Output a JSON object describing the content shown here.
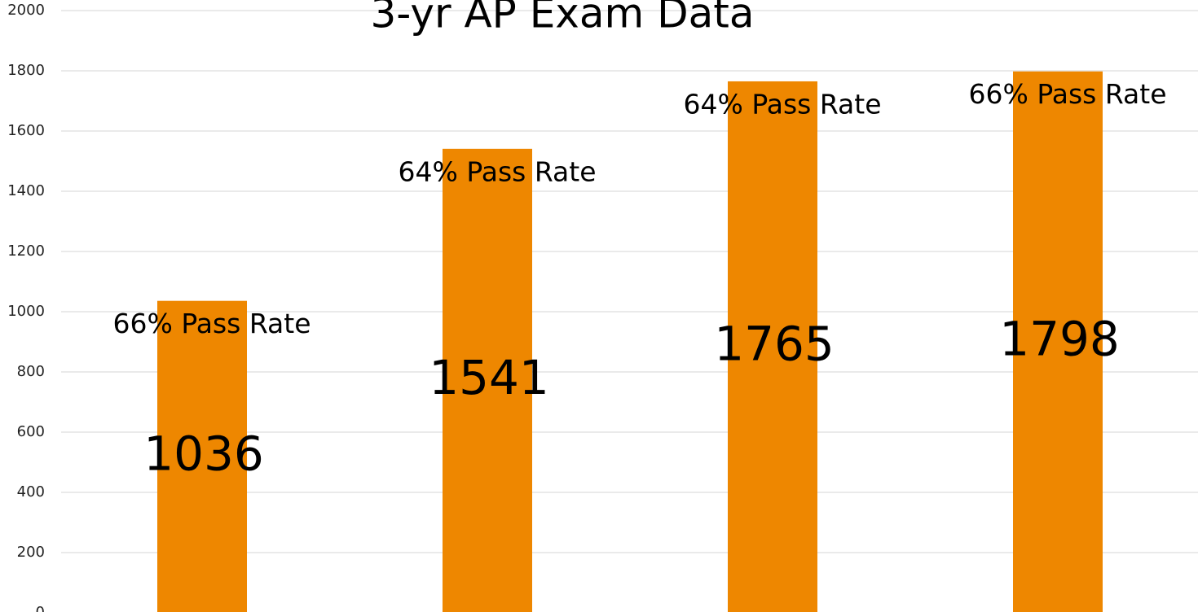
{
  "chart_data": {
    "type": "bar",
    "title": "3-yr AP Exam Data",
    "values": [
      1036,
      1541,
      1765,
      1798
    ],
    "annotations": [
      "66% Pass Rate",
      "64% Pass Rate",
      "64% Pass Rate",
      "66% Pass Rate"
    ],
    "color": "#ee8700",
    "ylim": [
      0,
      2000
    ],
    "yticks": [
      0,
      200,
      400,
      600,
      800,
      1000,
      1200,
      1400,
      1600,
      1800,
      2000
    ],
    "grid": true
  }
}
